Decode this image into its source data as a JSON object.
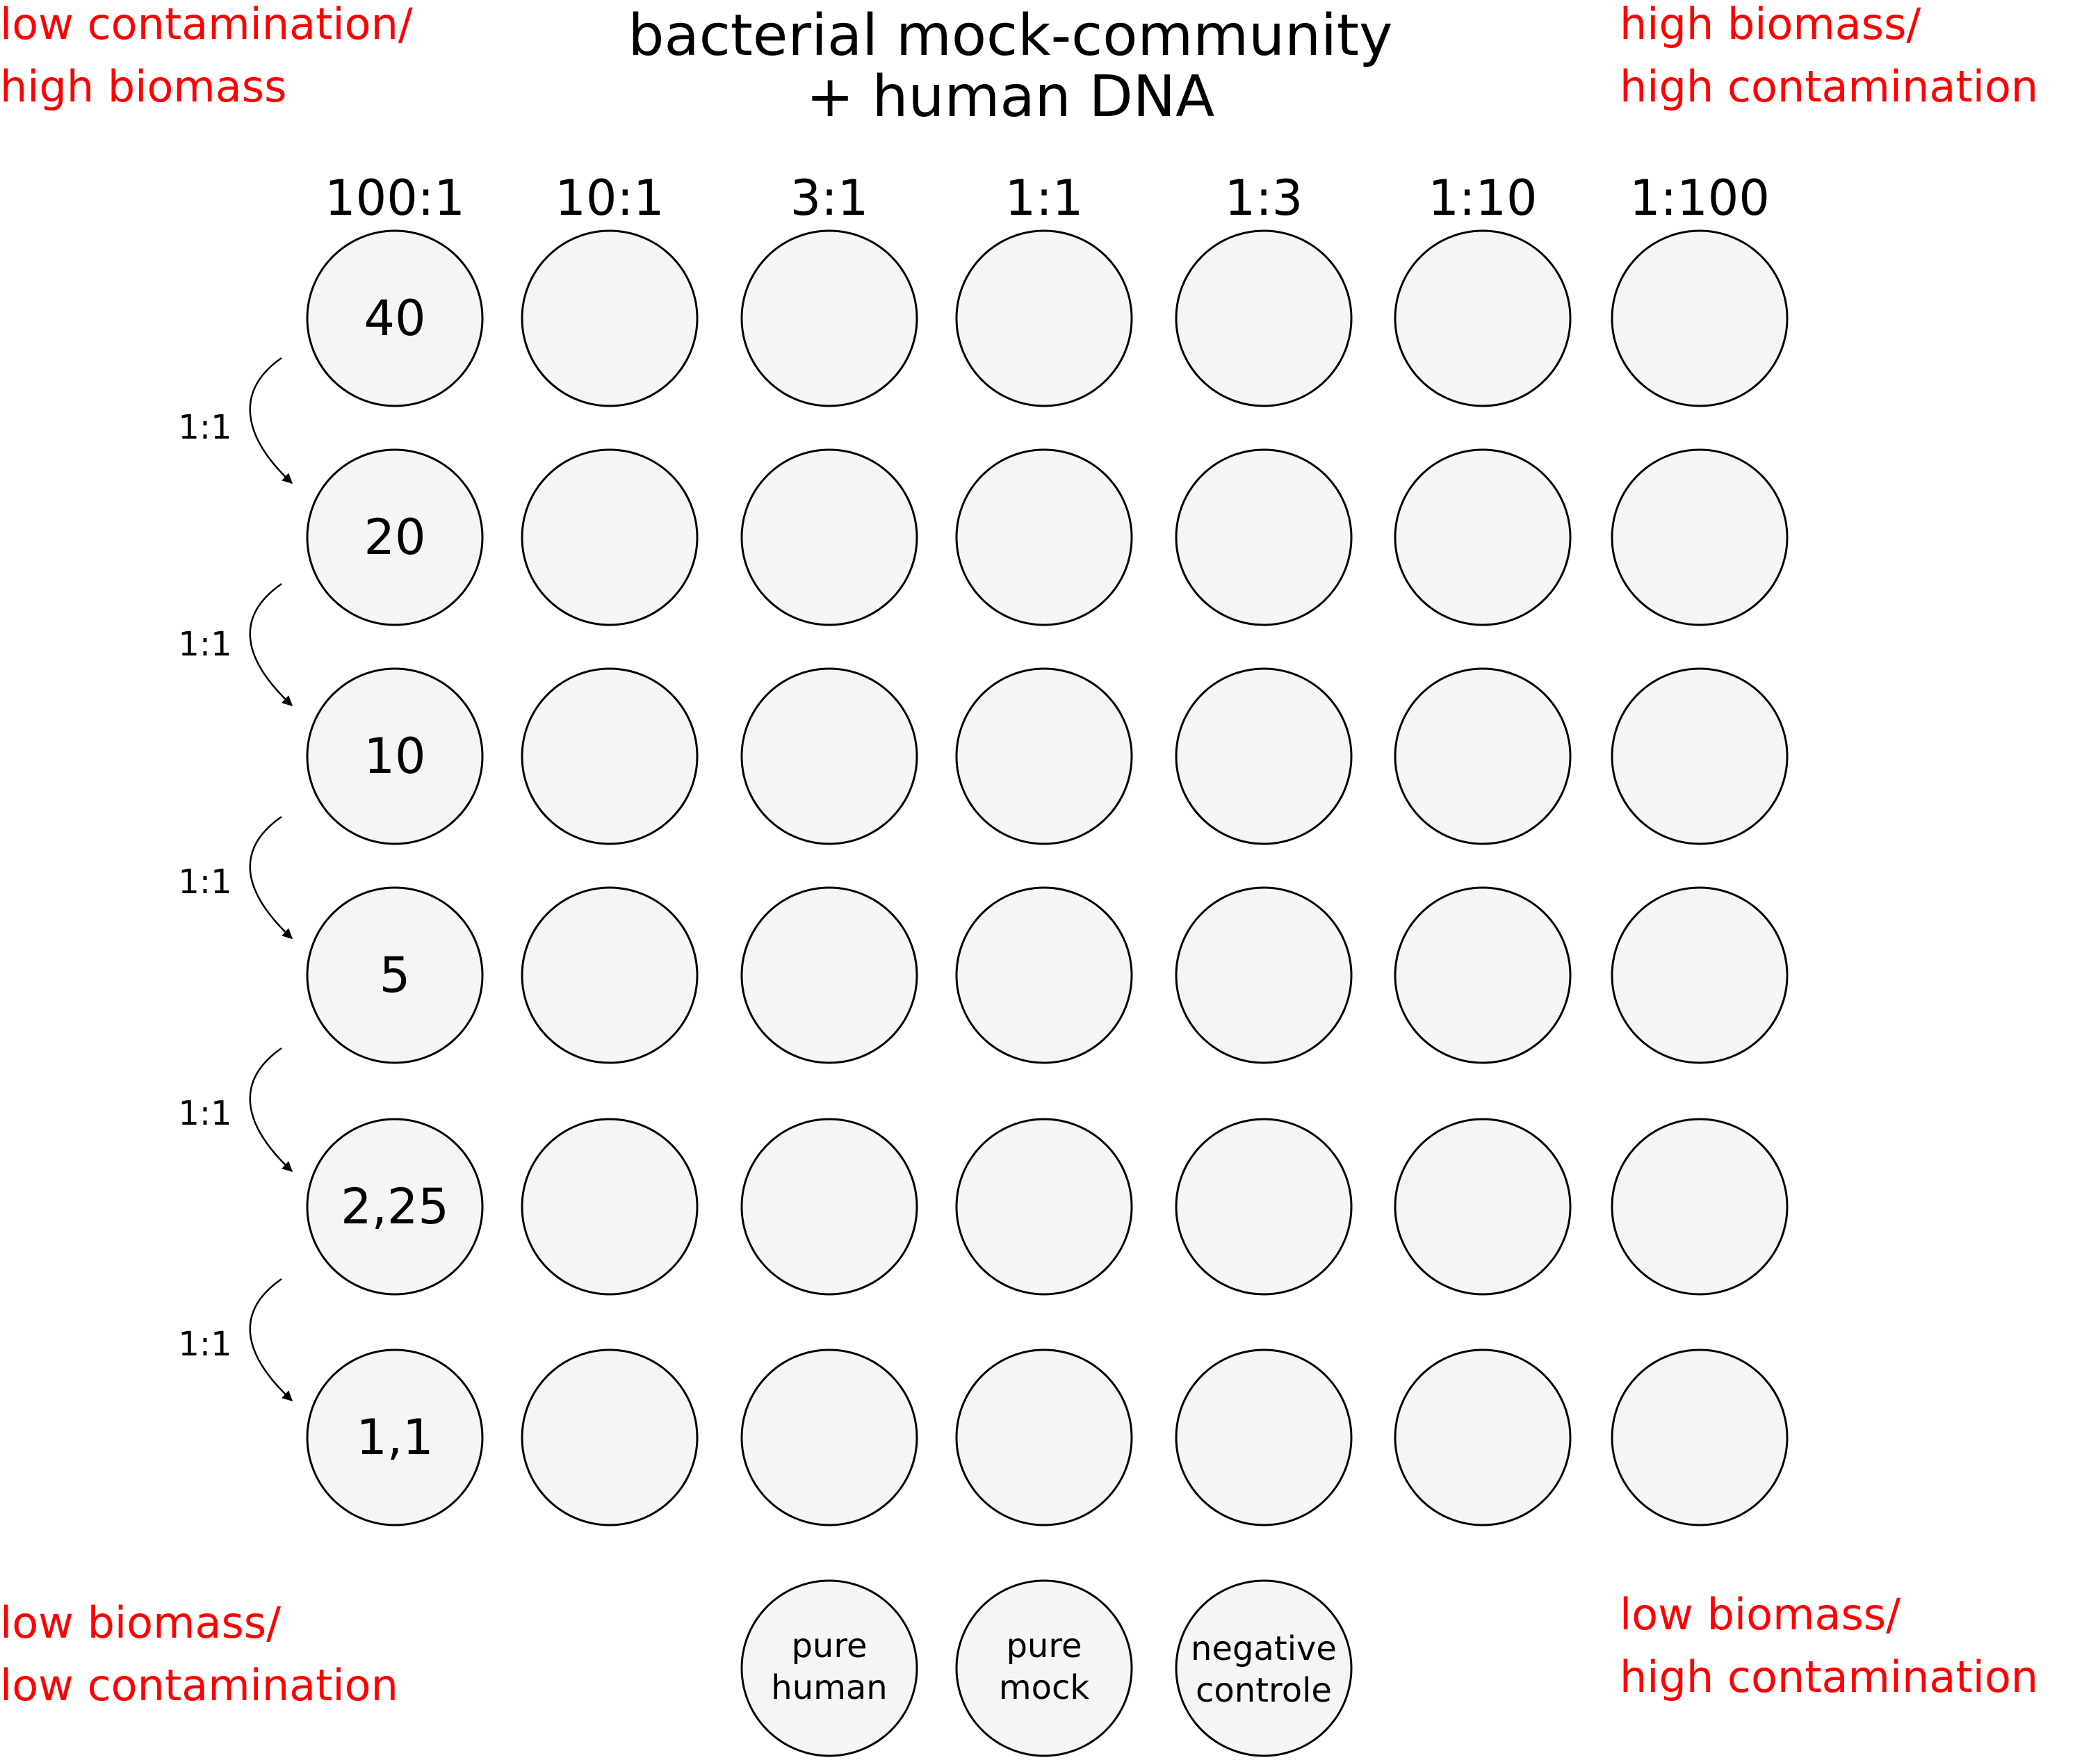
{
  "corners": {
    "top_left": [
      "low contamination/",
      "high biomass"
    ],
    "top_right": [
      "high biomass/",
      "high contamination"
    ],
    "bottom_left": [
      "low biomass/",
      "low contamination"
    ],
    "bottom_right": [
      "low biomass/",
      "high contamination"
    ]
  },
  "title": [
    "bacterial mock-community",
    "+ human DNA"
  ],
  "ratios": [
    "100:1",
    "10:1",
    "3:1",
    "1:1",
    "1:3",
    "1:10",
    "1:100"
  ],
  "first_column_values": [
    "40",
    "20",
    "10",
    "5",
    "2,25",
    "1,1"
  ],
  "dilution_step_label": "1:1",
  "controls": [
    [
      "pure",
      "human"
    ],
    [
      "pure",
      "mock"
    ],
    [
      "negative",
      "controle"
    ]
  ],
  "colors": {
    "annotation": "#ff0000",
    "well_fill": "#f5f5f5",
    "well_stroke": "#000000",
    "text": "#000000"
  }
}
